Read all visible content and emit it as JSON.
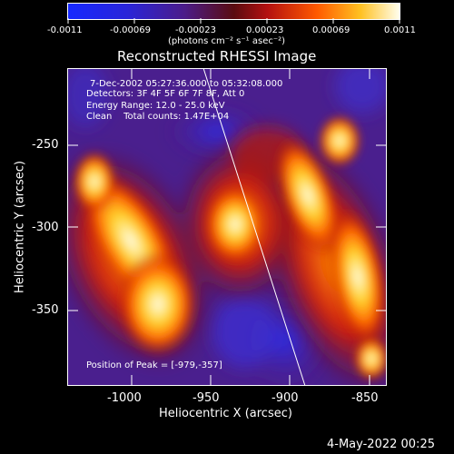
{
  "colorbar": {
    "ticks": [
      "-0.0011",
      "-0.00069",
      "-0.00023",
      "0.00023",
      "0.00069",
      "0.0011"
    ],
    "units": "(photons cm⁻² s⁻¹ asec⁻²)"
  },
  "title": "Reconstructed RHESSI Image",
  "info": {
    "time_range": "7-Dec-2002 05:27:36.000 to 05:32:08.000",
    "detectors": "Detectors: 3F 4F 5F 6F 7F 8F, Att 0",
    "energy": "Energy Range: 12.0 - 25.0 keV",
    "clean": "Clean    Total counts: 1.47E+04",
    "peak": "Position of Peak = [-979,-357]"
  },
  "x_axis": {
    "label": "Heliocentric X (arcsec)",
    "ticks": [
      "-1000",
      "-950",
      "-900",
      "-850"
    ]
  },
  "y_axis": {
    "label": "Heliocentric Y (arcsec)",
    "ticks": [
      "-250",
      "-300",
      "-350"
    ]
  },
  "footer_timestamp": "4-May-2022 00:25",
  "colors": {
    "background": "#000000",
    "foreground": "#ffffff",
    "low": "#1428ff",
    "mid_low": "#4b1c8a",
    "mid": "#9a0f12",
    "mid_high": "#ff6a00",
    "high": "#fffff0"
  }
}
